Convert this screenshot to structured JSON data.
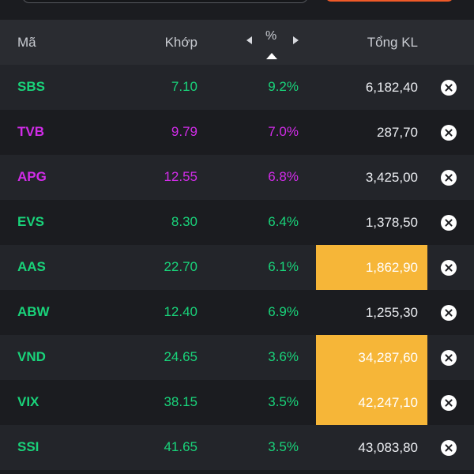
{
  "header": {
    "col_code": "Mã",
    "col_price": "Khớp",
    "col_pct": "%",
    "col_volume": "Tổng KL"
  },
  "colors": {
    "up_green": "#19d37a",
    "ceiling_purple": "#d12ce8",
    "highlight": "#f6b638",
    "accent_orange": "#f05a28"
  },
  "rows": [
    {
      "code": "SBS",
      "price": "7.10",
      "pct": "9.2%",
      "volume": "6,182,40",
      "color": "green",
      "highlight": false
    },
    {
      "code": "TVB",
      "price": "9.79",
      "pct": "7.0%",
      "volume": "287,70",
      "color": "purple",
      "highlight": false
    },
    {
      "code": "APG",
      "price": "12.55",
      "pct": "6.8%",
      "volume": "3,425,00",
      "color": "purple",
      "highlight": false
    },
    {
      "code": "EVS",
      "price": "8.30",
      "pct": "6.4%",
      "volume": "1,378,50",
      "color": "green",
      "highlight": false
    },
    {
      "code": "AAS",
      "price": "22.70",
      "pct": "6.1%",
      "volume": "1,862,90",
      "color": "green",
      "highlight": true
    },
    {
      "code": "ABW",
      "price": "12.40",
      "pct": "6.9%",
      "volume": "1,255,30",
      "color": "green",
      "highlight": false
    },
    {
      "code": "VND",
      "price": "24.65",
      "pct": "3.6%",
      "volume": "34,287,60",
      "color": "green",
      "highlight": true
    },
    {
      "code": "VIX",
      "price": "38.15",
      "pct": "3.5%",
      "volume": "42,247,10",
      "color": "green",
      "highlight": true
    },
    {
      "code": "SSI",
      "price": "41.65",
      "pct": "3.5%",
      "volume": "43,083,80",
      "color": "green",
      "highlight": false
    }
  ]
}
